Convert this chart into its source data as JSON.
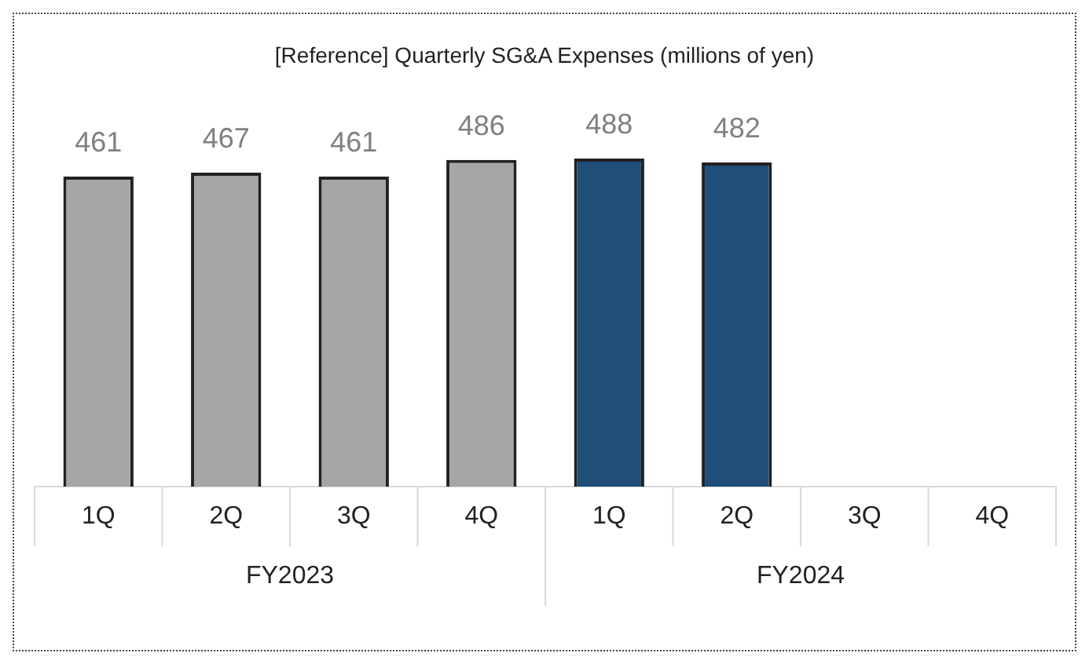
{
  "chart_data": {
    "type": "bar",
    "title": "[Reference] Quarterly SG&A Expenses (millions of yen)",
    "categories": [
      "1Q",
      "2Q",
      "3Q",
      "4Q",
      "1Q",
      "2Q",
      "3Q",
      "4Q"
    ],
    "values": [
      461,
      467,
      461,
      486,
      488,
      482,
      null,
      null
    ],
    "colors": [
      "#a6a6a6",
      "#a6a6a6",
      "#a6a6a6",
      "#a6a6a6",
      "#1f4e79",
      "#1f4e79",
      "#1f4e79",
      "#1f4e79"
    ],
    "tick_labels": "x",
    "data_labels": true,
    "legend": false,
    "annotations": [
      "FY2023",
      "FY2024"
    ]
  }
}
